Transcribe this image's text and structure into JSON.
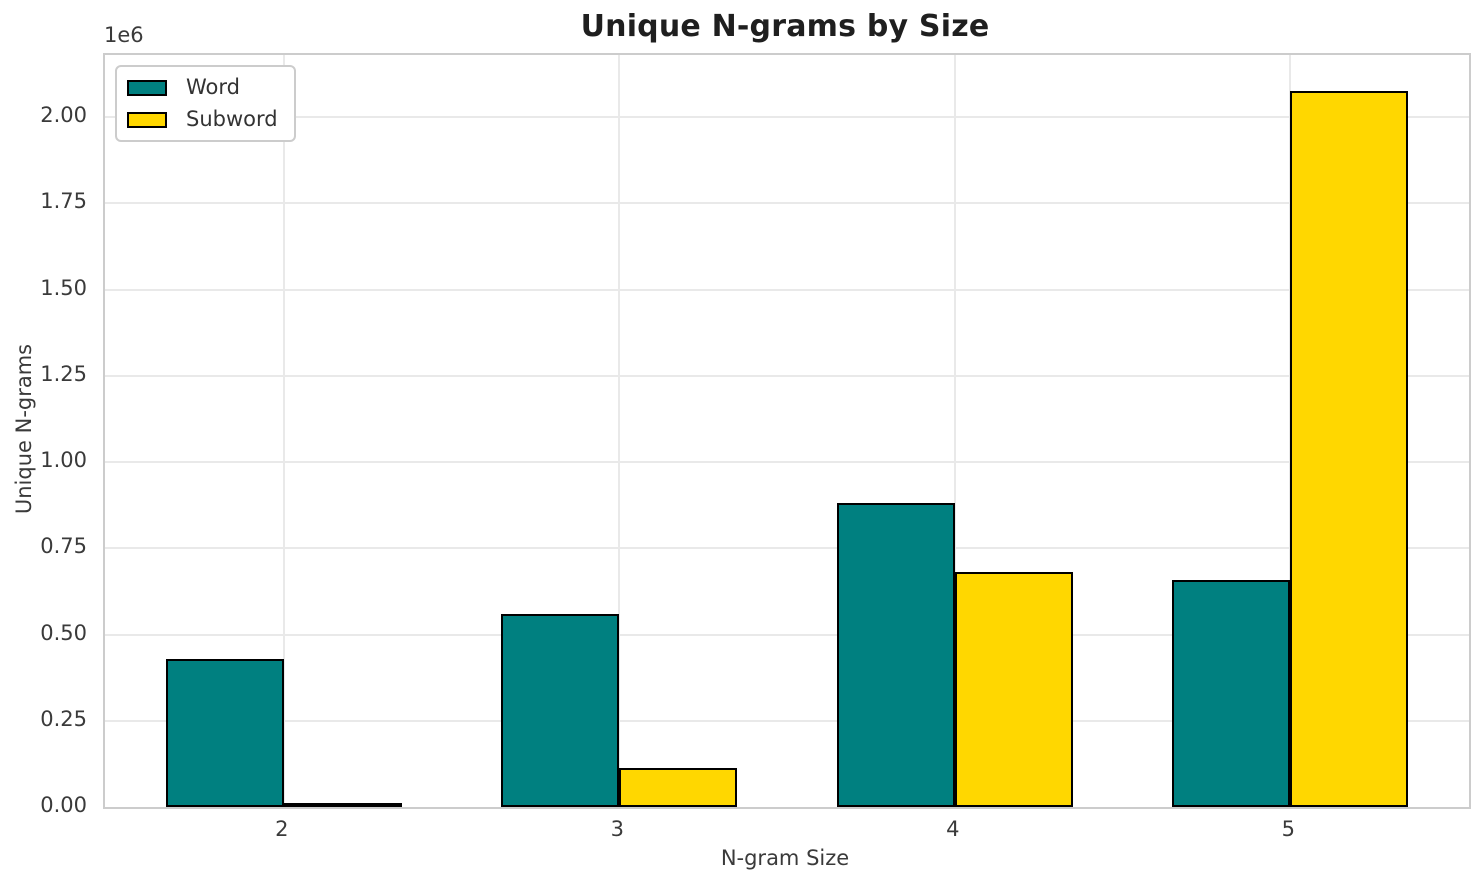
{
  "chart_data": {
    "type": "bar",
    "title": "Unique N-grams by Size",
    "xlabel": "N-gram Size",
    "ylabel": "Unique N-grams",
    "y_offset_label": "1e6",
    "categories": [
      "2",
      "3",
      "4",
      "5"
    ],
    "series": [
      {
        "name": "Word",
        "color": "#008080",
        "values": [
          430000,
          560000,
          880000,
          657000
        ]
      },
      {
        "name": "Subword",
        "color": "#FFD700",
        "values": [
          12000,
          114000,
          681000,
          2075000
        ]
      }
    ],
    "ylim": [
      0,
      2180000
    ],
    "yticklabels": [
      "0.00",
      "0.25",
      "0.50",
      "0.75",
      "1.00",
      "1.25",
      "1.50",
      "1.75",
      "2.00"
    ],
    "ytick_unit": 1000000,
    "bar_edge_color": "#000000",
    "grid": true,
    "gridline_color": "#e9e9e9",
    "spine_color": "#cccccc",
    "legend_position": "upper left",
    "legend_entries": [
      "Word",
      "Subword"
    ]
  }
}
